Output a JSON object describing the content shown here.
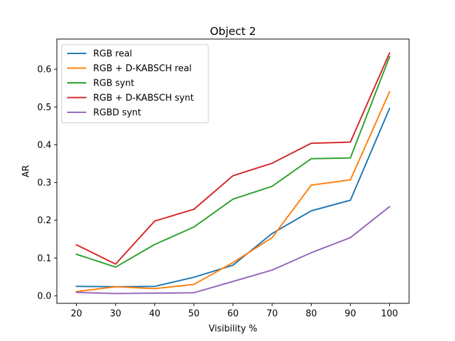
{
  "chart_data": {
    "type": "line",
    "title": "Object 2",
    "xlabel": "Visibility %",
    "ylabel": "AR",
    "x": [
      20,
      30,
      40,
      50,
      60,
      70,
      80,
      90,
      100
    ],
    "xlim": [
      15,
      105
    ],
    "ylim": [
      -0.02,
      0.68
    ],
    "x_ticks": [
      "20",
      "30",
      "40",
      "50",
      "60",
      "70",
      "80",
      "90",
      "100"
    ],
    "y_ticks": [
      "0.0",
      "0.1",
      "0.2",
      "0.3",
      "0.4",
      "0.5",
      "0.6"
    ],
    "legend_position": "upper-left",
    "grid": false,
    "series": [
      {
        "name": "RGB real",
        "color": "#1f77b4",
        "values": [
          0.025,
          0.024,
          0.025,
          0.049,
          0.081,
          0.165,
          0.225,
          0.253,
          0.496
        ]
      },
      {
        "name": "RGB + D-KABSCH real",
        "color": "#ff7f0e",
        "values": [
          0.011,
          0.024,
          0.019,
          0.03,
          0.088,
          0.154,
          0.293,
          0.307,
          0.54
        ]
      },
      {
        "name": "RGB synt",
        "color": "#2ca02c",
        "values": [
          0.11,
          0.076,
          0.136,
          0.182,
          0.256,
          0.29,
          0.363,
          0.365,
          0.633
        ]
      },
      {
        "name": "RGB + D-KABSCH synt",
        "color": "#d62728",
        "values": [
          0.135,
          0.084,
          0.198,
          0.229,
          0.318,
          0.351,
          0.404,
          0.407,
          0.643
        ]
      },
      {
        "name": "RGBD synt",
        "color": "#9467bd",
        "values": [
          0.009,
          0.006,
          0.007,
          0.008,
          0.038,
          0.068,
          0.114,
          0.154,
          0.236
        ]
      }
    ]
  }
}
